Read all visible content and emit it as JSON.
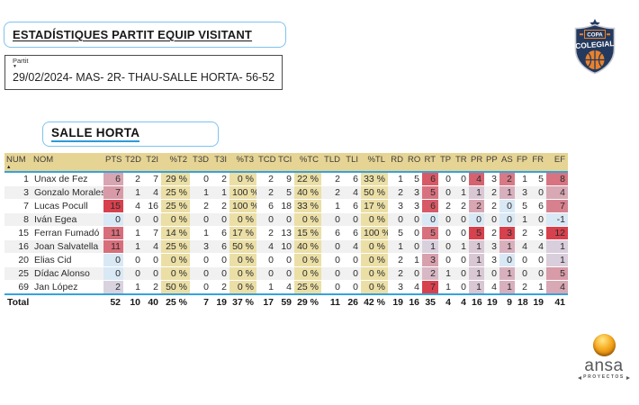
{
  "page": {
    "title": "ESTADÍSTIQUES PARTIT EQUIP VISITANT",
    "team_title": "SALLE HORTA"
  },
  "partit": {
    "label": "Partit",
    "value": "29/02/2024- MAS- 2R- THAU-SALLE HORTA- 56-52"
  },
  "logos": {
    "copa_colegial": {
      "line1": "COPA",
      "line2": "COLEGIAL"
    },
    "ansa": {
      "name": "ansa",
      "subtitle": "PROYECTOS"
    }
  },
  "colors": {
    "accent_blue": "#35A2DE",
    "box_border_blue": "#7CC3EF",
    "header_bg": "#E6D494",
    "percent_bg": "#EBDFA6",
    "row_alt_bg": "#F1F1F1",
    "heat_low": "#D9E8F5",
    "heat_high": "#D7414E",
    "logo_navy": "#24395E",
    "logo_orange": "#E8822C"
  },
  "table": {
    "sort_icon": "▲",
    "columns": [
      "NUM",
      "NOM",
      "PTS",
      "T2D",
      "T2I",
      "%T2",
      "T3D",
      "T3I",
      "%T3",
      "TCD",
      "TCI",
      "%TC",
      "TLD",
      "TLI",
      "%TL",
      "RD",
      "RO",
      "RT",
      "TP",
      "TR",
      "PR",
      "PP",
      "AS",
      "FP",
      "FR",
      "EF"
    ],
    "percent_cols": [
      5,
      8,
      11,
      14
    ],
    "heat_cols": {
      "2": {
        "min": 0,
        "max": 15
      },
      "17": {
        "min": 0,
        "max": 7
      },
      "20": {
        "min": 0,
        "max": 5
      },
      "22": {
        "min": 0,
        "max": 3
      },
      "25": {
        "min": -1,
        "max": 12
      }
    },
    "rows": [
      [
        "1",
        "Unax de Fez",
        "6",
        "2",
        "7",
        "29 %",
        "0",
        "2",
        "0 %",
        "2",
        "9",
        "22 %",
        "2",
        "6",
        "33 %",
        "1",
        "5",
        "6",
        "0",
        "0",
        "4",
        "3",
        "2",
        "1",
        "5",
        "8"
      ],
      [
        "3",
        "Gonzalo Morales",
        "7",
        "1",
        "4",
        "25 %",
        "1",
        "1",
        "100 %",
        "2",
        "5",
        "40 %",
        "2",
        "4",
        "50 %",
        "2",
        "3",
        "5",
        "0",
        "1",
        "1",
        "2",
        "1",
        "3",
        "0",
        "4"
      ],
      [
        "7",
        "Lucas Pocull",
        "15",
        "4",
        "16",
        "25 %",
        "2",
        "2",
        "100 %",
        "6",
        "18",
        "33 %",
        "1",
        "6",
        "17 %",
        "3",
        "3",
        "6",
        "2",
        "2",
        "2",
        "2",
        "0",
        "5",
        "6",
        "7"
      ],
      [
        "8",
        "Iván Egea",
        "0",
        "0",
        "0",
        "0 %",
        "0",
        "0",
        "0 %",
        "0",
        "0",
        "0 %",
        "0",
        "0",
        "0 %",
        "0",
        "0",
        "0",
        "0",
        "0",
        "0",
        "0",
        "0",
        "1",
        "0",
        "-1"
      ],
      [
        "15",
        "Ferran Fumadó",
        "11",
        "1",
        "7",
        "14 %",
        "1",
        "6",
        "17 %",
        "2",
        "13",
        "15 %",
        "6",
        "6",
        "100 %",
        "5",
        "0",
        "5",
        "0",
        "0",
        "5",
        "2",
        "3",
        "2",
        "3",
        "12"
      ],
      [
        "16",
        "Joan Salvatella",
        "11",
        "1",
        "4",
        "25 %",
        "3",
        "6",
        "50 %",
        "4",
        "10",
        "40 %",
        "0",
        "4",
        "0 %",
        "1",
        "0",
        "1",
        "0",
        "1",
        "1",
        "3",
        "1",
        "4",
        "4",
        "1"
      ],
      [
        "20",
        "Elias Cid",
        "0",
        "0",
        "0",
        "0 %",
        "0",
        "0",
        "0 %",
        "0",
        "0",
        "0 %",
        "0",
        "0",
        "0 %",
        "2",
        "1",
        "3",
        "0",
        "0",
        "1",
        "3",
        "0",
        "0",
        "0",
        "1"
      ],
      [
        "25",
        "Dídac Alonso",
        "0",
        "0",
        "0",
        "0 %",
        "0",
        "0",
        "0 %",
        "0",
        "0",
        "0 %",
        "0",
        "0",
        "0 %",
        "2",
        "0",
        "2",
        "1",
        "0",
        "1",
        "0",
        "1",
        "0",
        "0",
        "5"
      ],
      [
        "69",
        "Jan López",
        "2",
        "1",
        "2",
        "50 %",
        "0",
        "2",
        "0 %",
        "1",
        "4",
        "25 %",
        "0",
        "0",
        "0 %",
        "3",
        "4",
        "7",
        "1",
        "0",
        "1",
        "4",
        "1",
        "2",
        "1",
        "4"
      ]
    ],
    "total": [
      "Total",
      "",
      "52",
      "10",
      "40",
      "25 %",
      "7",
      "19",
      "37 %",
      "17",
      "59",
      "29 %",
      "11",
      "26",
      "42 %",
      "19",
      "16",
      "35",
      "4",
      "4",
      "16",
      "19",
      "9",
      "18",
      "19",
      "41"
    ]
  }
}
